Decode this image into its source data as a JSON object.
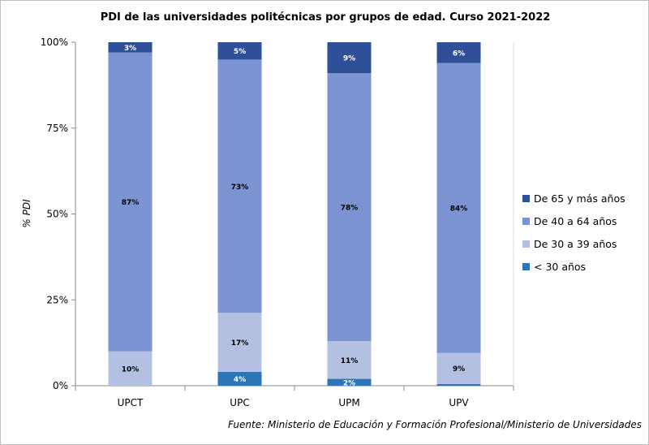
{
  "chart_data": {
    "type": "bar",
    "stacked": "percent",
    "title": "PDI de las universidades politécnicas por grupos de edad. Curso 2021-2022",
    "ylabel": "% PDI",
    "xlabel": "",
    "ylim": [
      0,
      100
    ],
    "yticks": [
      "0%",
      "25%",
      "50%",
      "75%",
      "100%"
    ],
    "categories": [
      "UPCT",
      "UPC",
      "UPM",
      "UPV"
    ],
    "series": [
      {
        "name": "< 30 años",
        "color": "#2e75b6",
        "label_color": "#ffffff",
        "values": [
          0,
          4,
          2,
          0.5
        ],
        "labels": [
          "",
          "4%",
          "2%",
          ""
        ]
      },
      {
        "name": "De 30 a 39 años",
        "color": "#b4c0e1",
        "label_color": "#000000",
        "values": [
          10,
          17,
          11,
          9
        ],
        "labels": [
          "10%",
          "17%",
          "11%",
          "9%"
        ]
      },
      {
        "name": "De 40 a 64 años",
        "color": "#7b93d1",
        "label_color": "#000000",
        "values": [
          87,
          73,
          78,
          84
        ],
        "labels": [
          "87%",
          "73%",
          "78%",
          "84%"
        ]
      },
      {
        "name": "De 65 y más años",
        "color": "#2f4f98",
        "label_color": "#ffffff",
        "values": [
          3,
          5,
          9,
          6
        ],
        "labels": [
          "3%",
          "5%",
          "9%",
          "6%"
        ]
      }
    ],
    "legend_position": "right",
    "grid": false,
    "source": "Fuente: Ministerio de Educación y Formación Profesional/Ministerio de Universidades"
  }
}
